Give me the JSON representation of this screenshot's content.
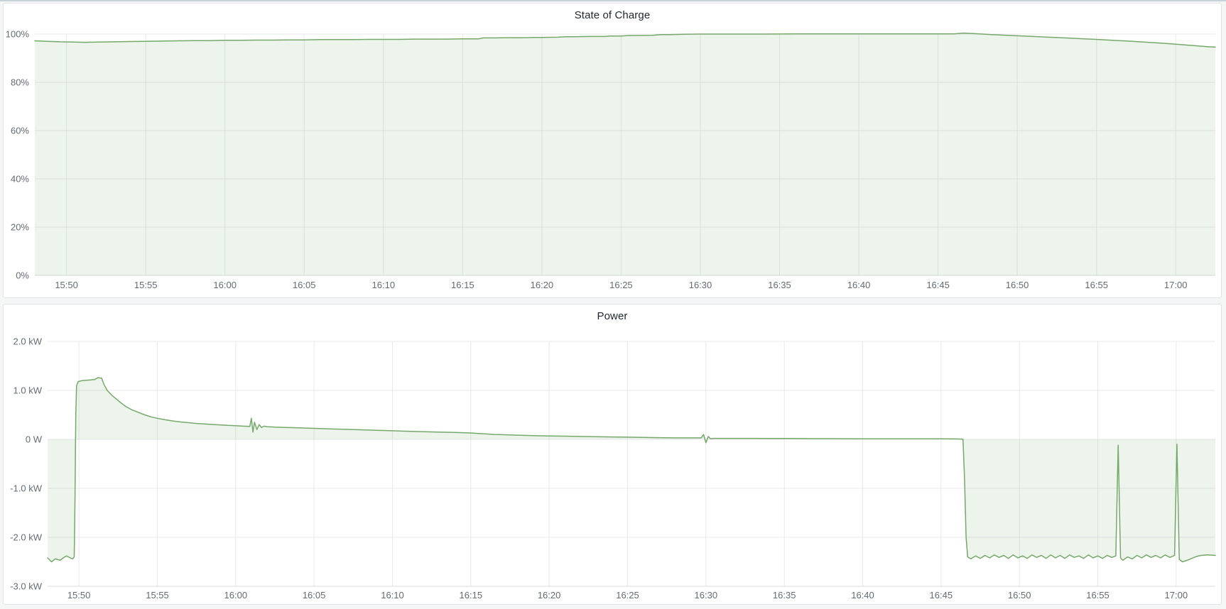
{
  "page": {
    "background": "#f4f5f5",
    "top_strip_color": "#c9d2da"
  },
  "colors": {
    "panel_bg": "#ffffff",
    "panel_border": "#e0e4e8",
    "title_text": "#1f262d",
    "tick_text": "#646b73",
    "grid": "#e8e9eb",
    "axis_line": "#dadcdd",
    "line": "#76a86b",
    "fill": "rgba(118,168,107,0.13)"
  },
  "chart_data": [
    {
      "type": "area",
      "title": "State of Charge",
      "ylabel": "",
      "xlabel": "",
      "ylim": [
        0,
        100
      ],
      "unit": "percent",
      "legend": "none",
      "grid": "on",
      "y_ticks": [
        {
          "v": 100,
          "label": "100%"
        },
        {
          "v": 80,
          "label": "80%"
        },
        {
          "v": 60,
          "label": "60%"
        },
        {
          "v": 40,
          "label": "40%"
        },
        {
          "v": 20,
          "label": "20%"
        },
        {
          "v": 0,
          "label": "0%"
        }
      ],
      "x_ticks": [
        {
          "t": 2,
          "label": "15:50"
        },
        {
          "t": 7,
          "label": "15:55"
        },
        {
          "t": 12,
          "label": "16:00"
        },
        {
          "t": 17,
          "label": "16:05"
        },
        {
          "t": 22,
          "label": "16:10"
        },
        {
          "t": 27,
          "label": "16:15"
        },
        {
          "t": 32,
          "label": "16:20"
        },
        {
          "t": 37,
          "label": "16:25"
        },
        {
          "t": 42,
          "label": "16:30"
        },
        {
          "t": 47,
          "label": "16:35"
        },
        {
          "t": 52,
          "label": "16:40"
        },
        {
          "t": 57,
          "label": "16:45"
        },
        {
          "t": 62,
          "label": "16:50"
        },
        {
          "t": 67,
          "label": "16:55"
        },
        {
          "t": 72,
          "label": "17:00"
        }
      ],
      "points": [
        [
          0,
          97.2
        ],
        [
          0.8,
          97.0
        ],
        [
          1.6,
          96.8
        ],
        [
          2.4,
          96.7
        ],
        [
          3.2,
          96.6
        ],
        [
          4,
          96.7
        ],
        [
          5,
          96.8
        ],
        [
          6,
          96.9
        ],
        [
          7,
          97.0
        ],
        [
          8,
          97.1
        ],
        [
          9,
          97.2
        ],
        [
          10,
          97.3
        ],
        [
          11,
          97.3
        ],
        [
          12,
          97.4
        ],
        [
          13,
          97.4
        ],
        [
          14,
          97.5
        ],
        [
          15,
          97.5
        ],
        [
          16,
          97.6
        ],
        [
          17,
          97.6
        ],
        [
          18,
          97.7
        ],
        [
          19,
          97.7
        ],
        [
          20,
          97.7
        ],
        [
          21,
          97.8
        ],
        [
          22,
          97.8
        ],
        [
          23,
          97.8
        ],
        [
          24,
          97.9
        ],
        [
          25,
          97.9
        ],
        [
          26,
          97.9
        ],
        [
          27,
          98.0
        ],
        [
          28,
          98.0
        ],
        [
          28.3,
          98.4
        ],
        [
          29,
          98.4
        ],
        [
          30,
          98.5
        ],
        [
          31,
          98.5
        ],
        [
          31.5,
          98.6
        ],
        [
          32,
          98.6
        ],
        [
          33,
          98.7
        ],
        [
          33.5,
          98.9
        ],
        [
          34,
          98.9
        ],
        [
          35,
          99.0
        ],
        [
          36,
          99.0
        ],
        [
          36.3,
          99.2
        ],
        [
          37,
          99.2
        ],
        [
          37.5,
          99.4
        ],
        [
          38,
          99.4
        ],
        [
          39,
          99.5
        ],
        [
          39.5,
          99.8
        ],
        [
          40,
          99.8
        ],
        [
          41,
          99.9
        ],
        [
          42,
          100.0
        ],
        [
          44,
          100.0
        ],
        [
          46,
          100.0
        ],
        [
          48,
          100.05
        ],
        [
          50,
          100.1
        ],
        [
          52,
          100.1
        ],
        [
          54,
          100.1
        ],
        [
          56,
          100.1
        ],
        [
          58,
          100.1
        ],
        [
          58.6,
          100.4
        ],
        [
          59.2,
          100.2
        ],
        [
          60,
          99.9
        ],
        [
          61,
          99.6
        ],
        [
          62,
          99.3
        ],
        [
          63,
          99.0
        ],
        [
          64,
          98.7
        ],
        [
          65,
          98.4
        ],
        [
          66,
          98.1
        ],
        [
          67,
          97.8
        ],
        [
          68,
          97.4
        ],
        [
          69,
          97.1
        ],
        [
          70,
          96.7
        ],
        [
          71,
          96.3
        ],
        [
          72,
          95.8
        ],
        [
          73,
          95.3
        ],
        [
          74,
          94.8
        ],
        [
          74.5,
          94.6
        ]
      ]
    },
    {
      "type": "area",
      "title": "Power",
      "ylabel": "",
      "xlabel": "",
      "ylim": [
        -3,
        2
      ],
      "unit": "kW",
      "legend": "none",
      "grid": "on",
      "y_ticks": [
        {
          "v": 2,
          "label": "2.0 kW"
        },
        {
          "v": 1,
          "label": "1.0 kW"
        },
        {
          "v": 0,
          "label": "0 W"
        },
        {
          "v": -1,
          "label": "-1.0 kW"
        },
        {
          "v": -2,
          "label": "-2.0 kW"
        },
        {
          "v": -3,
          "label": "-3.0 kW"
        }
      ],
      "x_ticks": [
        {
          "t": 2,
          "label": "15:50"
        },
        {
          "t": 7,
          "label": "15:55"
        },
        {
          "t": 12,
          "label": "16:00"
        },
        {
          "t": 17,
          "label": "16:05"
        },
        {
          "t": 22,
          "label": "16:10"
        },
        {
          "t": 27,
          "label": "16:15"
        },
        {
          "t": 32,
          "label": "16:20"
        },
        {
          "t": 37,
          "label": "16:25"
        },
        {
          "t": 42,
          "label": "16:30"
        },
        {
          "t": 47,
          "label": "16:35"
        },
        {
          "t": 52,
          "label": "16:40"
        },
        {
          "t": 57,
          "label": "16:45"
        },
        {
          "t": 62,
          "label": "16:50"
        },
        {
          "t": 67,
          "label": "16:55"
        },
        {
          "t": 72,
          "label": "17:00"
        }
      ],
      "points": [
        [
          0,
          -2.42
        ],
        [
          0.25,
          -2.5
        ],
        [
          0.5,
          -2.44
        ],
        [
          0.8,
          -2.47
        ],
        [
          1.0,
          -2.42
        ],
        [
          1.2,
          -2.38
        ],
        [
          1.45,
          -2.42
        ],
        [
          1.6,
          -2.44
        ],
        [
          1.7,
          -2.4
        ],
        [
          1.75,
          -1.2
        ],
        [
          1.8,
          0.5
        ],
        [
          1.85,
          1.1
        ],
        [
          1.95,
          1.18
        ],
        [
          2.2,
          1.2
        ],
        [
          2.6,
          1.21
        ],
        [
          3.0,
          1.22
        ],
        [
          3.2,
          1.26
        ],
        [
          3.45,
          1.25
        ],
        [
          3.6,
          1.12
        ],
        [
          3.8,
          1.0
        ],
        [
          4.1,
          0.9
        ],
        [
          4.4,
          0.82
        ],
        [
          4.7,
          0.74
        ],
        [
          5.0,
          0.67
        ],
        [
          5.4,
          0.6
        ],
        [
          5.8,
          0.55
        ],
        [
          6.2,
          0.5
        ],
        [
          6.6,
          0.46
        ],
        [
          7.0,
          0.43
        ],
        [
          7.5,
          0.4
        ],
        [
          8.0,
          0.375
        ],
        [
          8.5,
          0.355
        ],
        [
          9.0,
          0.34
        ],
        [
          9.5,
          0.325
        ],
        [
          10,
          0.315
        ],
        [
          10.5,
          0.305
        ],
        [
          11,
          0.295
        ],
        [
          11.5,
          0.285
        ],
        [
          12,
          0.28
        ],
        [
          12.5,
          0.27
        ],
        [
          12.9,
          0.265
        ],
        [
          13.0,
          0.43
        ],
        [
          13.1,
          0.15
        ],
        [
          13.2,
          0.35
        ],
        [
          13.35,
          0.2
        ],
        [
          13.5,
          0.3
        ],
        [
          13.65,
          0.24
        ],
        [
          13.8,
          0.27
        ],
        [
          14,
          0.26
        ],
        [
          14.5,
          0.25
        ],
        [
          15,
          0.245
        ],
        [
          16,
          0.235
        ],
        [
          17,
          0.225
        ],
        [
          18,
          0.215
        ],
        [
          19,
          0.205
        ],
        [
          20,
          0.195
        ],
        [
          21,
          0.185
        ],
        [
          22,
          0.175
        ],
        [
          23,
          0.165
        ],
        [
          24,
          0.155
        ],
        [
          25,
          0.15
        ],
        [
          26,
          0.14
        ],
        [
          27,
          0.13
        ],
        [
          27.5,
          0.12
        ],
        [
          28,
          0.11
        ],
        [
          28.5,
          0.1
        ],
        [
          29,
          0.095
        ],
        [
          30,
          0.085
        ],
        [
          31,
          0.075
        ],
        [
          32,
          0.07
        ],
        [
          33,
          0.065
        ],
        [
          34,
          0.06
        ],
        [
          35,
          0.055
        ],
        [
          36,
          0.05
        ],
        [
          37,
          0.045
        ],
        [
          38,
          0.04
        ],
        [
          39,
          0.035
        ],
        [
          40,
          0.03
        ],
        [
          41,
          0.03
        ],
        [
          41.7,
          0.03
        ],
        [
          41.85,
          0.1
        ],
        [
          42.0,
          -0.07
        ],
        [
          42.15,
          0.06
        ],
        [
          42.3,
          0.01
        ],
        [
          42.5,
          0.02
        ],
        [
          43,
          0.02
        ],
        [
          44,
          0.02
        ],
        [
          45,
          0.02
        ],
        [
          46,
          0.018
        ],
        [
          47,
          0.017
        ],
        [
          48,
          0.016
        ],
        [
          49,
          0.015
        ],
        [
          50,
          0.014
        ],
        [
          51,
          0.013
        ],
        [
          52,
          0.012
        ],
        [
          53,
          0.012
        ],
        [
          54,
          0.011
        ],
        [
          55,
          0.01
        ],
        [
          56,
          0.01
        ],
        [
          57,
          0.01
        ],
        [
          58,
          0.008
        ],
        [
          58.4,
          0.005
        ],
        [
          58.5,
          -0.8
        ],
        [
          58.6,
          -2.0
        ],
        [
          58.7,
          -2.4
        ],
        [
          58.9,
          -2.44
        ],
        [
          59.2,
          -2.38
        ],
        [
          59.5,
          -2.43
        ],
        [
          59.8,
          -2.37
        ],
        [
          60.1,
          -2.42
        ],
        [
          60.4,
          -2.36
        ],
        [
          60.7,
          -2.41
        ],
        [
          61.0,
          -2.37
        ],
        [
          61.3,
          -2.43
        ],
        [
          61.6,
          -2.36
        ],
        [
          61.9,
          -2.42
        ],
        [
          62.2,
          -2.38
        ],
        [
          62.5,
          -2.43
        ],
        [
          62.8,
          -2.36
        ],
        [
          63.1,
          -2.41
        ],
        [
          63.4,
          -2.37
        ],
        [
          63.7,
          -2.43
        ],
        [
          64.0,
          -2.36
        ],
        [
          64.3,
          -2.42
        ],
        [
          64.6,
          -2.37
        ],
        [
          64.9,
          -2.43
        ],
        [
          65.2,
          -2.36
        ],
        [
          65.5,
          -2.41
        ],
        [
          65.8,
          -2.38
        ],
        [
          66.1,
          -2.43
        ],
        [
          66.4,
          -2.36
        ],
        [
          66.7,
          -2.42
        ],
        [
          67.0,
          -2.38
        ],
        [
          67.3,
          -2.43
        ],
        [
          67.6,
          -2.37
        ],
        [
          67.9,
          -2.41
        ],
        [
          68.15,
          -2.38
        ],
        [
          68.3,
          -0.12
        ],
        [
          68.45,
          -2.42
        ],
        [
          68.6,
          -2.47
        ],
        [
          68.9,
          -2.4
        ],
        [
          69.2,
          -2.44
        ],
        [
          69.5,
          -2.37
        ],
        [
          69.8,
          -2.42
        ],
        [
          70.1,
          -2.36
        ],
        [
          70.4,
          -2.41
        ],
        [
          70.7,
          -2.37
        ],
        [
          71.0,
          -2.42
        ],
        [
          71.3,
          -2.36
        ],
        [
          71.6,
          -2.41
        ],
        [
          71.9,
          -2.37
        ],
        [
          72.05,
          -0.1
        ],
        [
          72.2,
          -2.45
        ],
        [
          72.4,
          -2.5
        ],
        [
          72.7,
          -2.47
        ],
        [
          73.0,
          -2.43
        ],
        [
          73.3,
          -2.39
        ],
        [
          73.6,
          -2.37
        ],
        [
          74.0,
          -2.36
        ],
        [
          74.5,
          -2.37
        ]
      ]
    }
  ]
}
